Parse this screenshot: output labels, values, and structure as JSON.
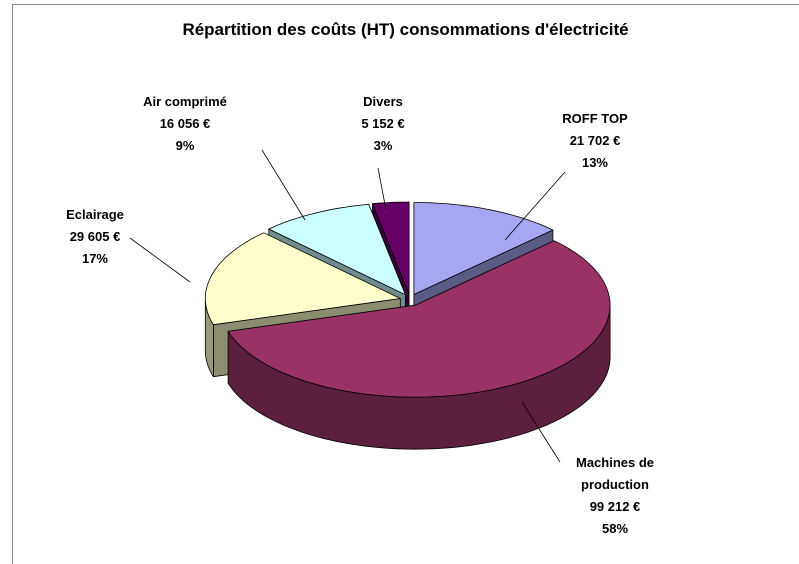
{
  "chart_data": {
    "type": "pie3d",
    "title": "Répartition des coûts (HT) consommations d'électricité",
    "categories": [
      "ROFF TOP",
      "Machines de production",
      "Eclairage",
      "Air comprimé",
      "Divers"
    ],
    "values": [
      21702,
      99212,
      29605,
      16056,
      5152
    ],
    "value_labels": [
      "21 702 €",
      "99 212 €",
      "29 605 €",
      "16 056 €",
      "5 152 €"
    ],
    "percentages": [
      13,
      58,
      17,
      9,
      3
    ],
    "percentage_labels": [
      "13%",
      "58%",
      "17%",
      "9%",
      "3%"
    ],
    "colors": [
      "#a6a6f2",
      "#993366",
      "#ffffcc",
      "#ccffff",
      "#660066"
    ]
  }
}
